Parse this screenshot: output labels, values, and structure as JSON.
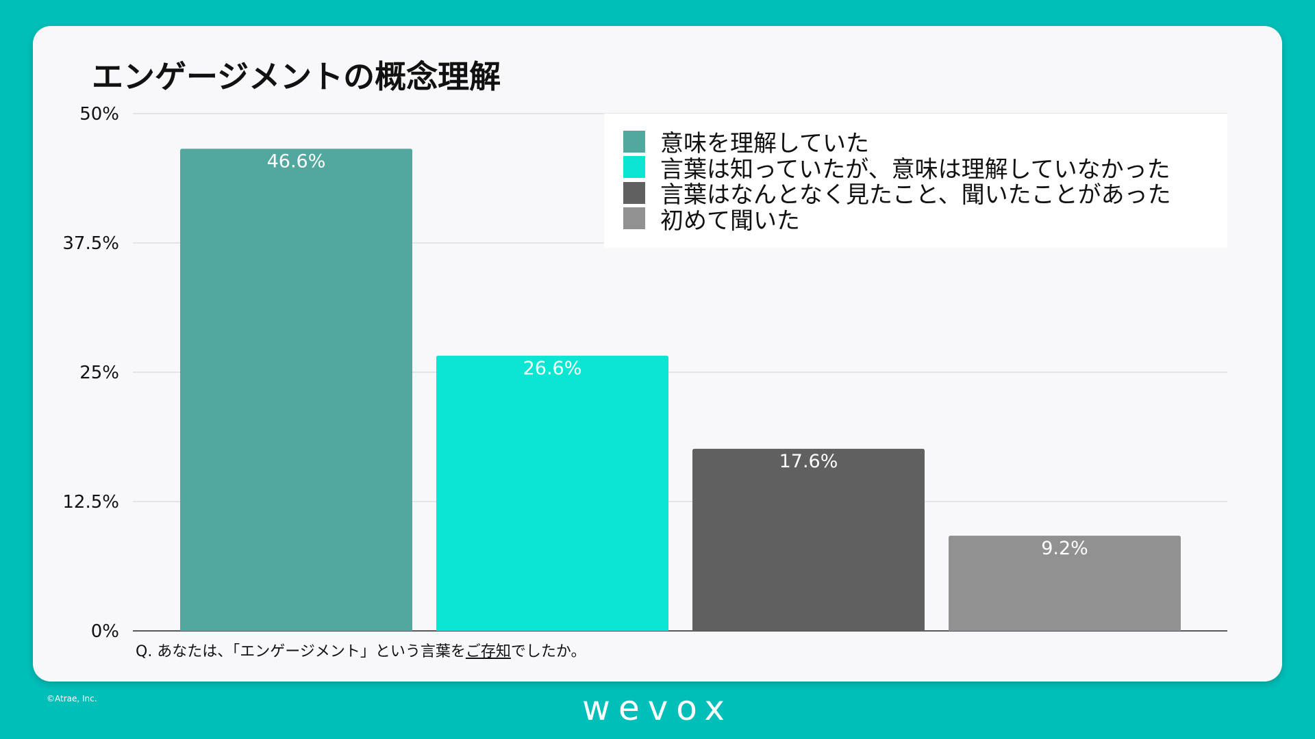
{
  "title": "エンゲージメントの概念理解",
  "question": {
    "before": "Q. あなたは、「エンゲージメント」という言葉を",
    "underlined": "ご存知",
    "after": "でしたか。"
  },
  "footer": {
    "copyright": "©Atrae, Inc.",
    "brand": "wevox"
  },
  "colors": {
    "page_background": "#00bfb8",
    "card_background": "#f8f8fb",
    "gridline": "#cfcfd4",
    "axis": "#222222",
    "bar_label": "#ffffff"
  },
  "chart_data": {
    "type": "bar",
    "title": "エンゲージメントの概念理解",
    "xlabel": "",
    "ylabel": "",
    "ylim": [
      0,
      50
    ],
    "yticks": [
      0,
      12.5,
      25,
      37.5,
      50
    ],
    "ytick_labels": [
      "0%",
      "12.5%",
      "25%",
      "37.5%",
      "50%"
    ],
    "grid": true,
    "legend_position": "top-right",
    "series": [
      {
        "name": "意味を理解していた",
        "value": 46.6,
        "label": "46.6%",
        "color": "#52a89e"
      },
      {
        "name": "言葉は知っていたが、意味は理解していなかった",
        "value": 26.6,
        "label": "26.6%",
        "color": "#0ae6d2"
      },
      {
        "name": "言葉はなんとなく見たこと、聞いたことがあった",
        "value": 17.6,
        "label": "17.6%",
        "color": "#606060"
      },
      {
        "name": "初めて聞いた",
        "value": 9.2,
        "label": "9.2%",
        "color": "#919191"
      }
    ]
  }
}
